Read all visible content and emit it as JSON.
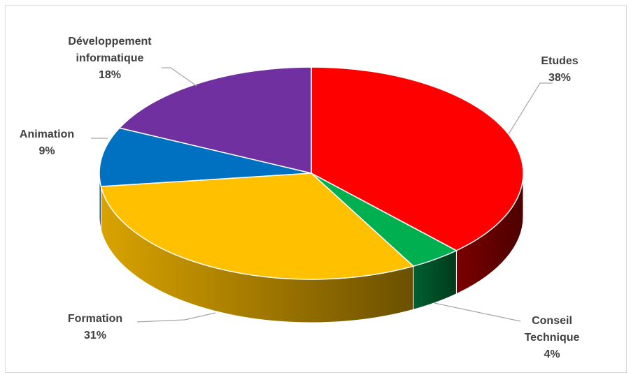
{
  "chart_data": {
    "type": "pie",
    "style": "3d",
    "categories": [
      "Etudes",
      "Conseil Technique",
      "Formation",
      "Animation",
      "Développement informatique"
    ],
    "values": [
      38,
      4,
      31,
      9,
      18
    ],
    "labels": [
      {
        "lines": [
          "Etudes"
        ],
        "pct": "38%"
      },
      {
        "lines": [
          "Conseil",
          "Technique"
        ],
        "pct": "4%"
      },
      {
        "lines": [
          "Formation"
        ],
        "pct": "31%"
      },
      {
        "lines": [
          "Animation"
        ],
        "pct": "9%"
      },
      {
        "lines": [
          "Développement",
          "informatique"
        ],
        "pct": "18%"
      }
    ],
    "colors": [
      "#ff0000",
      "#00b050",
      "#ffc000",
      "#0070c0",
      "#7030a0"
    ],
    "side_colors": [
      "#6b0000",
      "#004d26",
      "#b38600",
      "#004a80",
      "#4a1f6b"
    ],
    "title": "",
    "legend": "none"
  }
}
